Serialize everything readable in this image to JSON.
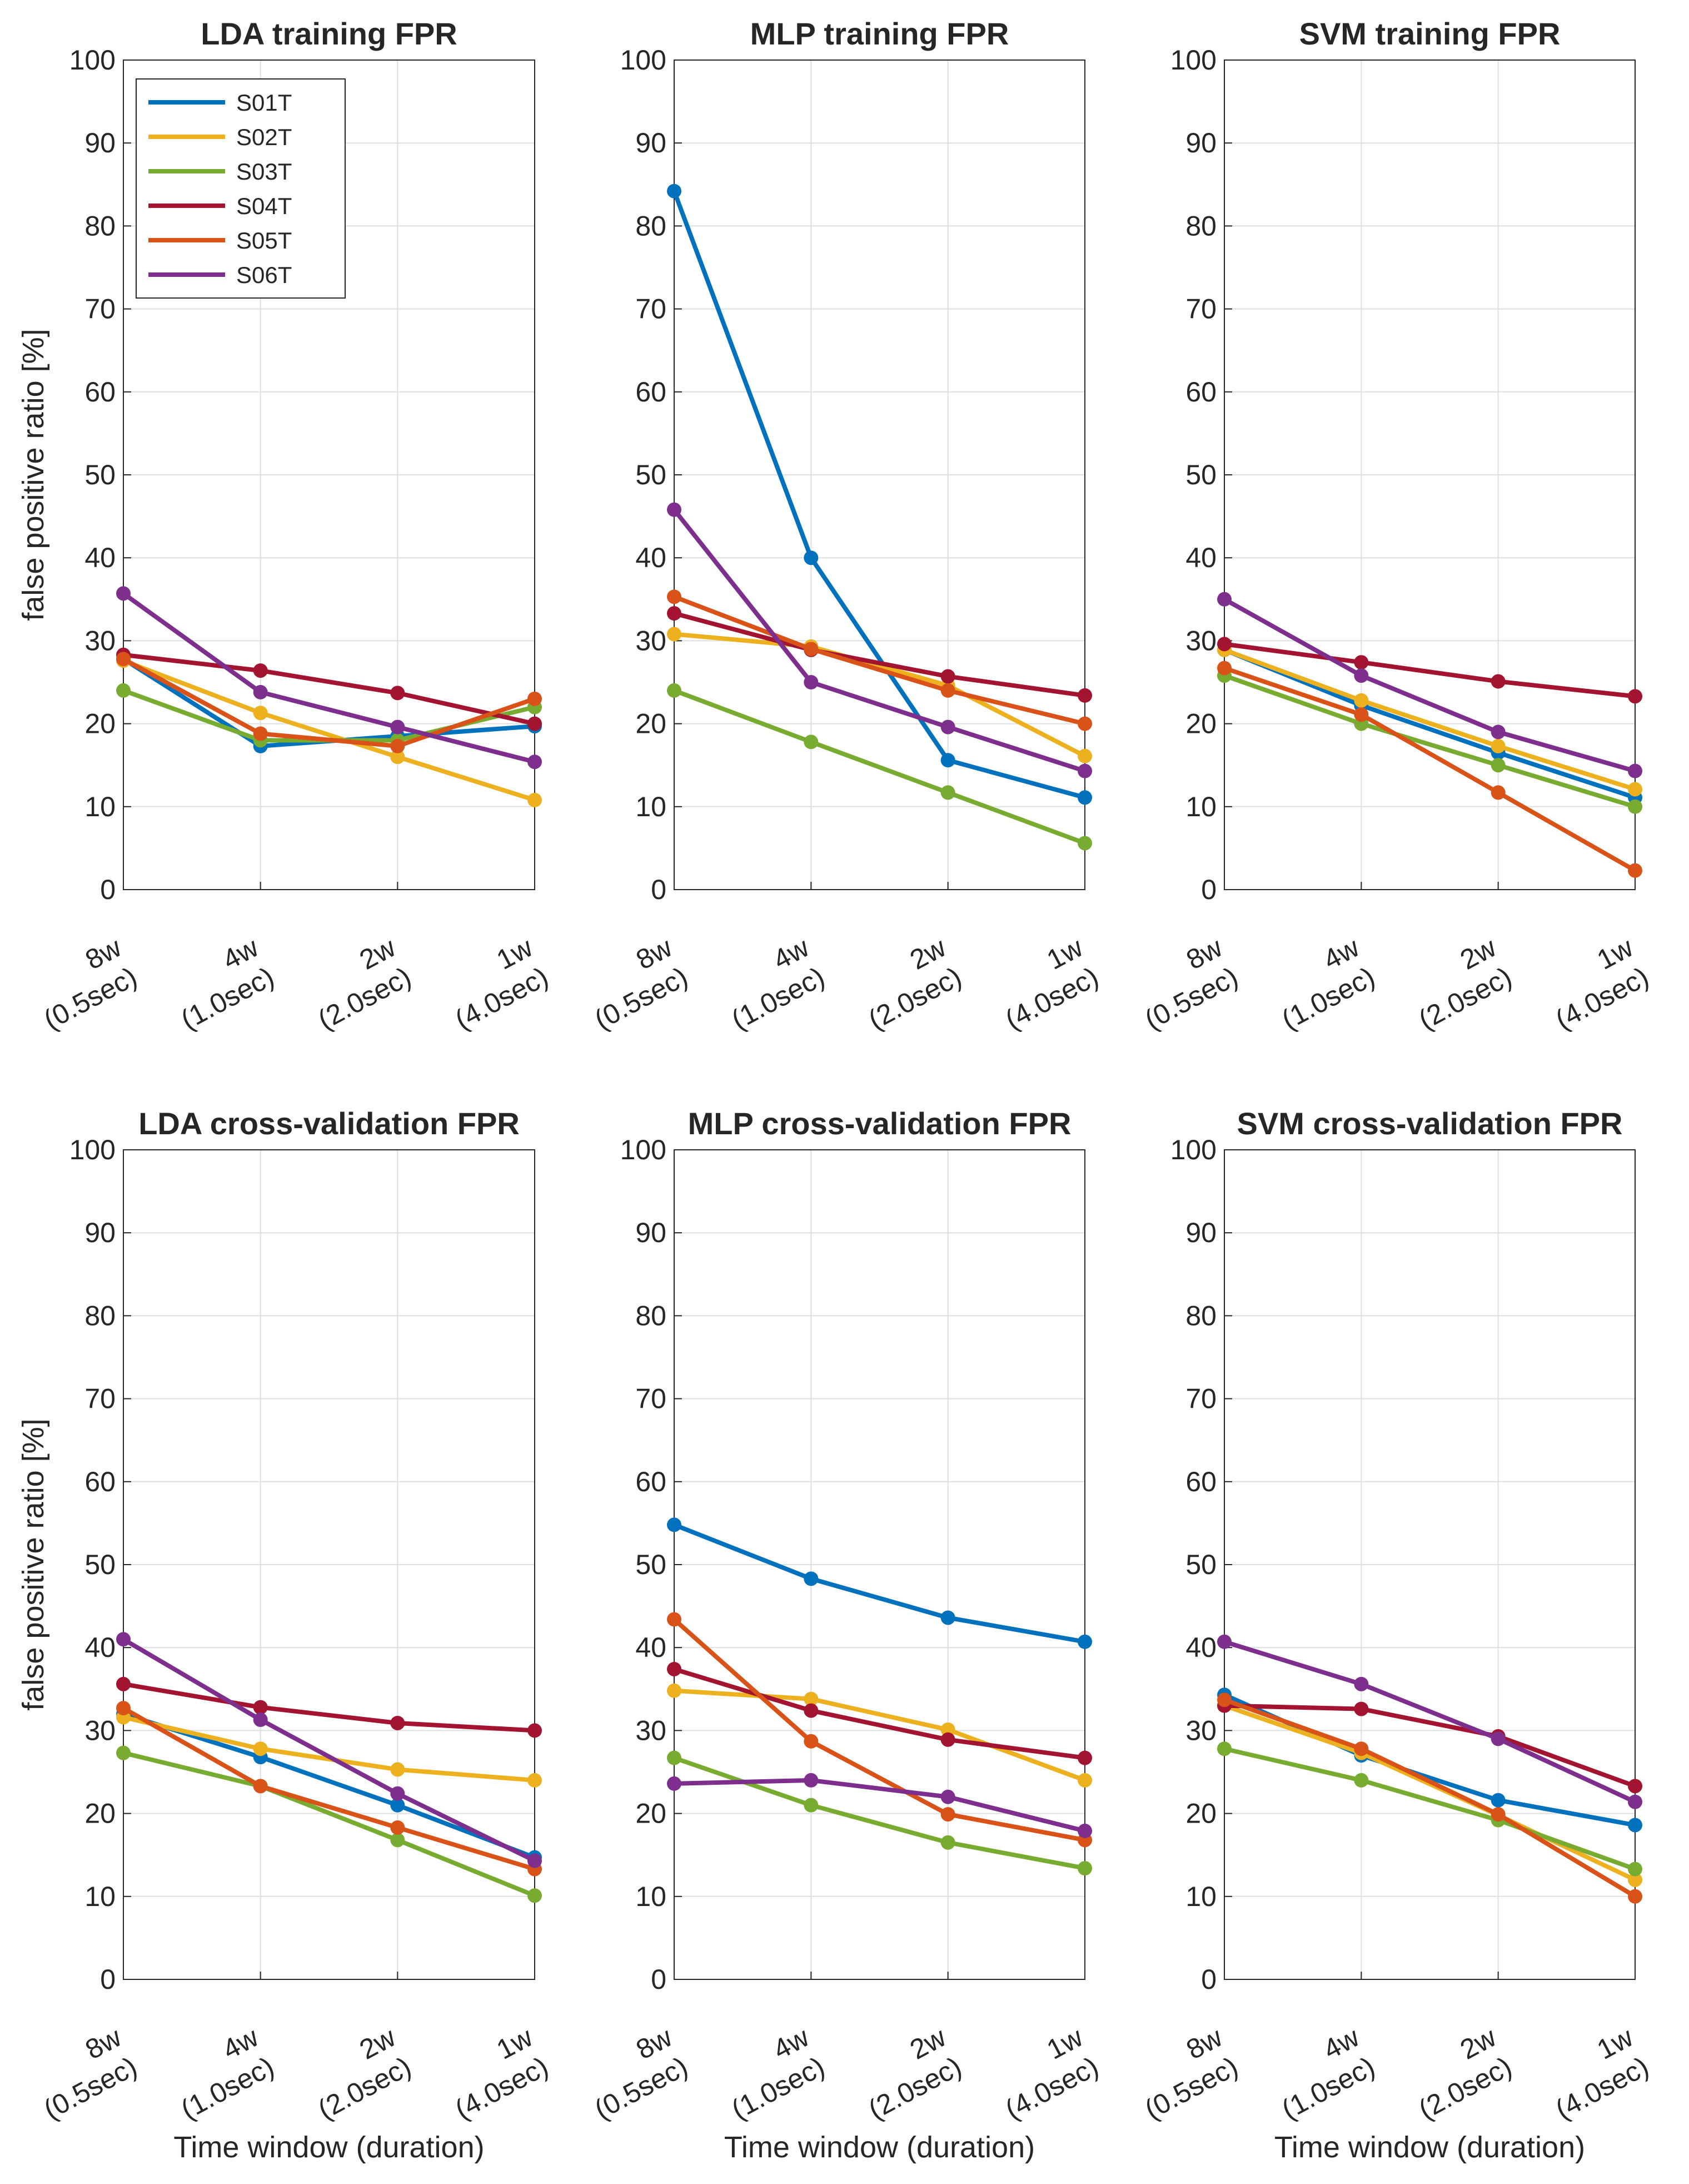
{
  "figure": {
    "ylabel": "false positive ratio [%]",
    "xlabel": "Time window (duration)",
    "categories": [
      {
        "top": "8w",
        "bottom": "(0.5sec)"
      },
      {
        "top": "4w",
        "bottom": "(1.0sec)"
      },
      {
        "top": "2w",
        "bottom": "(2.0sec)"
      },
      {
        "top": "1w",
        "bottom": "(4.0sec)"
      }
    ],
    "yticks": [
      "0",
      "10",
      "20",
      "30",
      "40",
      "50",
      "60",
      "70",
      "80",
      "90",
      "100"
    ],
    "legend": [
      {
        "name": "S01T",
        "color": "#0072BD"
      },
      {
        "name": "S02T",
        "color": "#EDB120"
      },
      {
        "name": "S03T",
        "color": "#77AC30"
      },
      {
        "name": "S04T",
        "color": "#A2142F"
      },
      {
        "name": "S05T",
        "color": "#D95319"
      },
      {
        "name": "S06T",
        "color": "#7E2F8E"
      }
    ]
  },
  "chart_data": [
    {
      "type": "line",
      "title": "LDA training FPR",
      "categories": [
        "8w (0.5sec)",
        "4w (1.0sec)",
        "2w (2.0sec)",
        "1w (4.0sec)"
      ],
      "ylabel": "false positive ratio [%]",
      "xlabel": "",
      "ylim": [
        0,
        100
      ],
      "series": [
        {
          "name": "S01T",
          "values": [
            27.8,
            17.3,
            18.5,
            19.7
          ]
        },
        {
          "name": "S02T",
          "values": [
            27.6,
            21.3,
            16.0,
            10.8
          ]
        },
        {
          "name": "S03T",
          "values": [
            24.0,
            18.0,
            18.0,
            22.0
          ]
        },
        {
          "name": "S04T",
          "values": [
            28.3,
            26.4,
            23.7,
            20.0
          ]
        },
        {
          "name": "S05T",
          "values": [
            27.8,
            18.8,
            17.3,
            23.0
          ]
        },
        {
          "name": "S06T",
          "values": [
            35.7,
            23.8,
            19.6,
            15.4
          ]
        }
      ]
    },
    {
      "type": "line",
      "title": "MLP training FPR",
      "categories": [
        "8w (0.5sec)",
        "4w (1.0sec)",
        "2w (2.0sec)",
        "1w (4.0sec)"
      ],
      "xlabel": "",
      "ylim": [
        0,
        100
      ],
      "series": [
        {
          "name": "S01T",
          "values": [
            84.2,
            40.0,
            15.6,
            11.1
          ]
        },
        {
          "name": "S02T",
          "values": [
            30.8,
            29.3,
            24.6,
            16.1
          ]
        },
        {
          "name": "S03T",
          "values": [
            24.0,
            17.8,
            11.7,
            5.6
          ]
        },
        {
          "name": "S04T",
          "values": [
            33.3,
            28.9,
            25.7,
            23.4
          ]
        },
        {
          "name": "S05T",
          "values": [
            35.3,
            29.0,
            24.0,
            20.0
          ]
        },
        {
          "name": "S06T",
          "values": [
            45.8,
            25.0,
            19.6,
            14.3
          ]
        }
      ]
    },
    {
      "type": "line",
      "title": "SVM  training FPR",
      "categories": [
        "8w (0.5sec)",
        "4w (1.0sec)",
        "2w (2.0sec)",
        "1w (4.0sec)"
      ],
      "xlabel": "",
      "ylim": [
        0,
        100
      ],
      "series": [
        {
          "name": "S01T",
          "values": [
            28.9,
            22.2,
            16.5,
            11.1
          ]
        },
        {
          "name": "S02T",
          "values": [
            28.9,
            22.8,
            17.3,
            12.1
          ]
        },
        {
          "name": "S03T",
          "values": [
            25.8,
            20.0,
            15.0,
            10.0
          ]
        },
        {
          "name": "S04T",
          "values": [
            29.6,
            27.4,
            25.1,
            23.3
          ]
        },
        {
          "name": "S05T",
          "values": [
            26.7,
            21.1,
            11.7,
            2.3
          ]
        },
        {
          "name": "S06T",
          "values": [
            35.0,
            25.8,
            19.0,
            14.3
          ]
        }
      ]
    },
    {
      "type": "line",
      "title": "LDA cross-validation FPR",
      "categories": [
        "8w (0.5sec)",
        "4w (1.0sec)",
        "2w (2.0sec)",
        "1w (4.0sec)"
      ],
      "ylabel": "false positive ratio [%]",
      "xlabel": "Time window (duration)",
      "ylim": [
        0,
        100
      ],
      "series": [
        {
          "name": "S01T",
          "values": [
            32.0,
            26.8,
            21.0,
            14.7
          ]
        },
        {
          "name": "S02T",
          "values": [
            31.6,
            27.8,
            25.3,
            24.0
          ]
        },
        {
          "name": "S03T",
          "values": [
            27.3,
            23.3,
            16.8,
            10.1
          ]
        },
        {
          "name": "S04T",
          "values": [
            35.6,
            32.8,
            30.9,
            30.0
          ]
        },
        {
          "name": "S05T",
          "values": [
            32.7,
            23.3,
            18.3,
            13.3
          ]
        },
        {
          "name": "S06T",
          "values": [
            41.0,
            31.3,
            22.4,
            14.3
          ]
        }
      ]
    },
    {
      "type": "line",
      "title": "MLP cross-validation FPR",
      "categories": [
        "8w (0.5sec)",
        "4w (1.0sec)",
        "2w (2.0sec)",
        "1w (4.0sec)"
      ],
      "xlabel": "Time window (duration)",
      "ylim": [
        0,
        100
      ],
      "series": [
        {
          "name": "S01T",
          "values": [
            54.8,
            48.3,
            43.6,
            40.7
          ]
        },
        {
          "name": "S02T",
          "values": [
            34.8,
            33.8,
            30.1,
            24.0
          ]
        },
        {
          "name": "S03T",
          "values": [
            26.7,
            21.0,
            16.5,
            13.4
          ]
        },
        {
          "name": "S04T",
          "values": [
            37.4,
            32.4,
            28.9,
            26.7
          ]
        },
        {
          "name": "S05T",
          "values": [
            43.4,
            28.7,
            19.9,
            16.8
          ]
        },
        {
          "name": "S06T",
          "values": [
            23.6,
            24.0,
            22.0,
            17.9
          ]
        }
      ]
    },
    {
      "type": "line",
      "title": "SVM cross-validation FPR",
      "categories": [
        "8w (0.5sec)",
        "4w (1.0sec)",
        "2w (2.0sec)",
        "1w (4.0sec)"
      ],
      "xlabel": "Time window (duration)",
      "ylim": [
        0,
        100
      ],
      "series": [
        {
          "name": "S01T",
          "values": [
            34.3,
            27.0,
            21.6,
            18.6
          ]
        },
        {
          "name": "S02T",
          "values": [
            33.0,
            27.3,
            19.8,
            12.0
          ]
        },
        {
          "name": "S03T",
          "values": [
            27.8,
            24.0,
            19.2,
            13.3
          ]
        },
        {
          "name": "S04T",
          "values": [
            33.0,
            32.6,
            29.3,
            23.3
          ]
        },
        {
          "name": "S05T",
          "values": [
            33.7,
            27.8,
            19.9,
            10.0
          ]
        },
        {
          "name": "S06T",
          "values": [
            40.7,
            35.6,
            29.0,
            21.4
          ]
        }
      ]
    }
  ]
}
